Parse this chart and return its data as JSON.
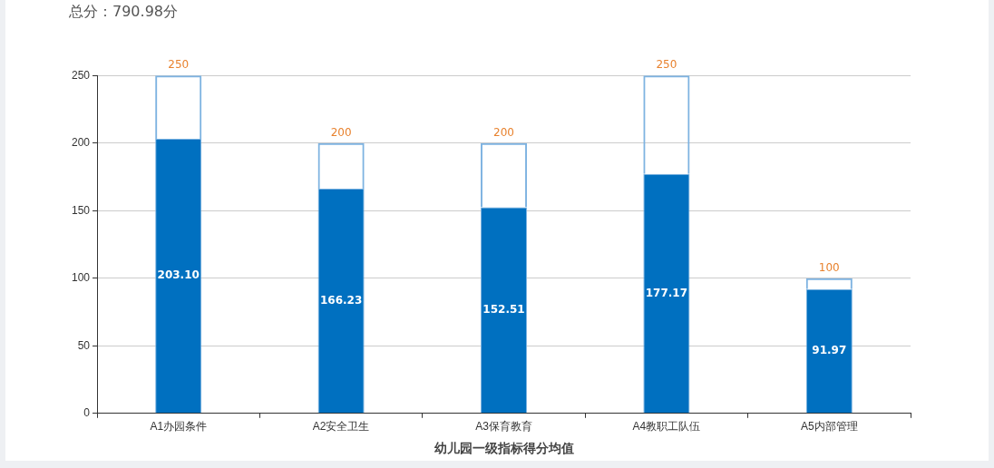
{
  "chart_data": {
    "type": "bar",
    "title": "总分：790.98分",
    "xlabel": "幼儿园一级指标得分均值",
    "categories": [
      "A1办园条件",
      "A2安全卫生",
      "A3保育教育",
      "A4教职工队伍",
      "A5内部管理"
    ],
    "stacked": true,
    "series": [
      {
        "color": "#0070c0",
        "values": [
          203.1,
          166.23,
          152.51,
          177.17,
          91.97
        ],
        "value_labels": [
          "203.10",
          "166.23",
          "152.51",
          "177.17",
          "91.97"
        ]
      },
      {
        "color": "#7eb3e1",
        "values": [
          46.9,
          33.77,
          47.49,
          72.83,
          8.03
        ]
      }
    ],
    "totals": [
      "250",
      "200",
      "200",
      "250",
      "100"
    ],
    "ylim": [
      0,
      250
    ],
    "yticks": [
      0,
      50,
      100,
      150,
      200,
      250
    ],
    "grid": "y",
    "legend": false
  }
}
